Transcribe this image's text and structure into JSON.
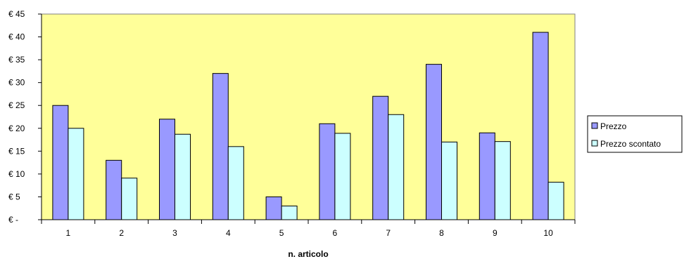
{
  "chart_data": {
    "type": "bar",
    "categories": [
      "1",
      "2",
      "3",
      "4",
      "5",
      "6",
      "7",
      "8",
      "9",
      "10"
    ],
    "series": [
      {
        "name": "Prezzo",
        "values": [
          25,
          13,
          22,
          32,
          5,
          21,
          27,
          34,
          19,
          41
        ]
      },
      {
        "name": "Prezzo scontato",
        "values": [
          20,
          9.1,
          18.7,
          16,
          3,
          18.9,
          23,
          17,
          17.1,
          8.2
        ]
      }
    ],
    "xlabel": "n. articolo",
    "ylabel": "",
    "ylim": [
      0,
      45
    ],
    "yticks": [
      {
        "value": 0,
        "label": "€ -"
      },
      {
        "value": 5,
        "label": "€ 5"
      },
      {
        "value": 10,
        "label": "€ 10"
      },
      {
        "value": 15,
        "label": "€ 15"
      },
      {
        "value": 20,
        "label": "€ 20"
      },
      {
        "value": 25,
        "label": "€ 25"
      },
      {
        "value": 30,
        "label": "€ 30"
      },
      {
        "value": 35,
        "label": "€ 35"
      },
      {
        "value": 40,
        "label": "€ 40"
      },
      {
        "value": 45,
        "label": "€ 45"
      }
    ],
    "grid": false,
    "legend_position": "right",
    "colors": {
      "plot_background": "#ffff99",
      "series": [
        "#9999ff",
        "#ccffff"
      ],
      "outline": "#000000"
    }
  }
}
